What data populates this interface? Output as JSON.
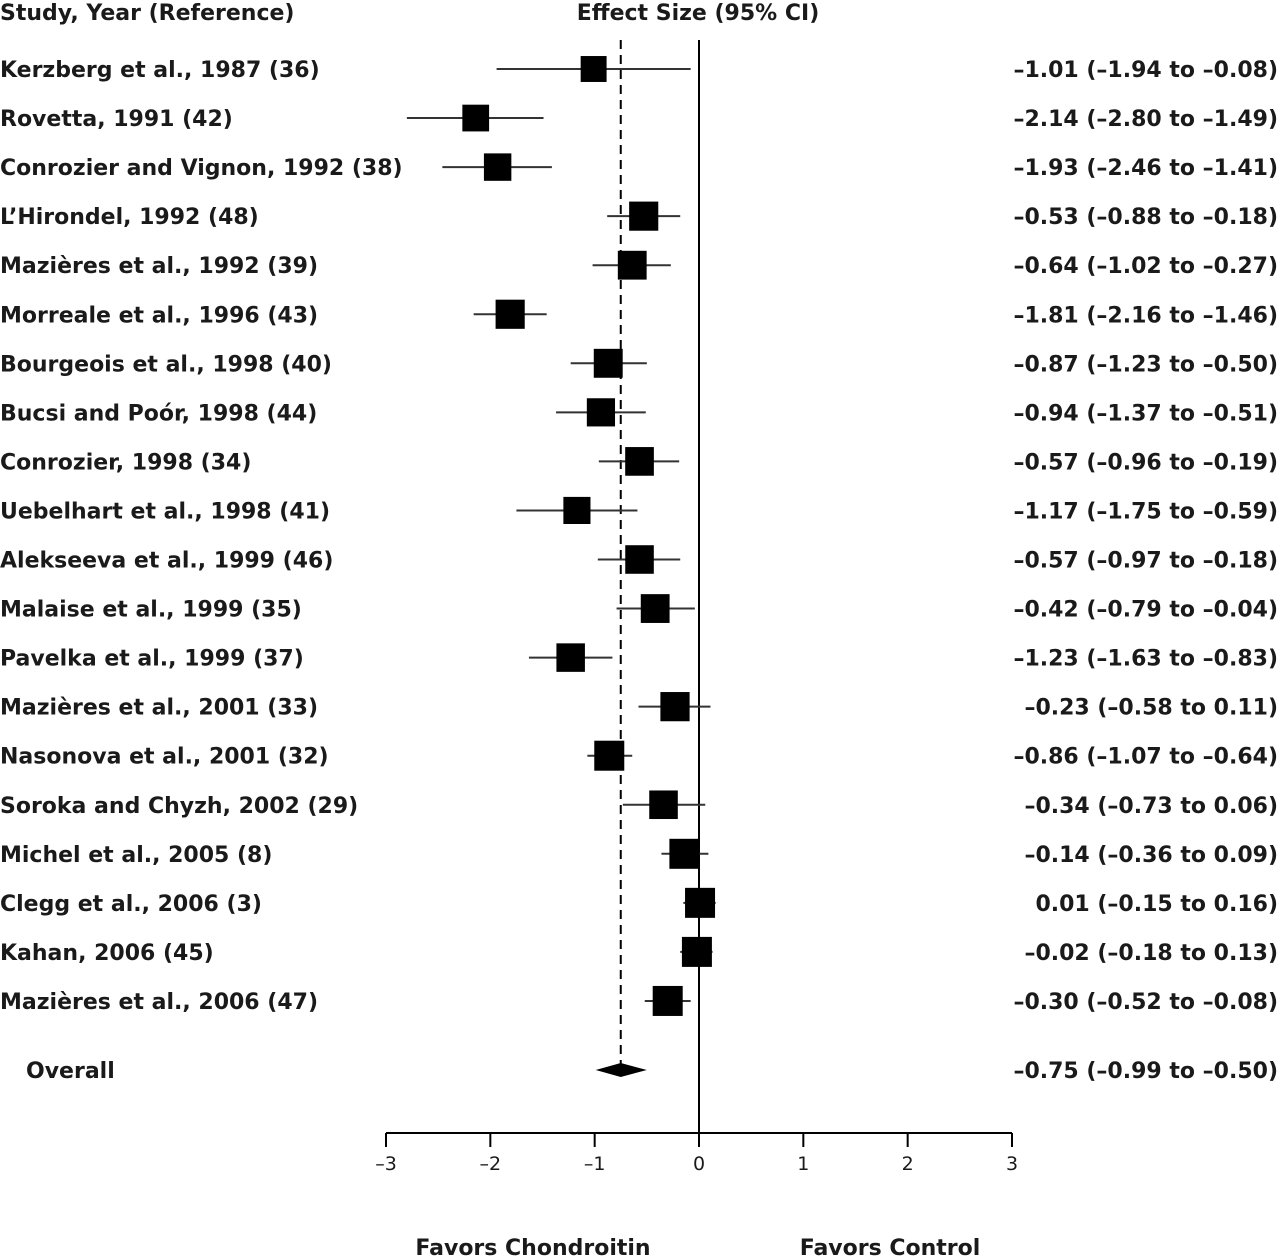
{
  "chart_data": {
    "type": "forest",
    "headers": {
      "study": "Study, Year (Reference)",
      "effect": "Effect Size (95% CI)"
    },
    "studies": [
      {
        "label": "Kerzberg et al., 1987 (36)",
        "est": -1.01,
        "lo": -1.94,
        "hi": -0.08,
        "ci_text": "–1.01 (–1.94 to –0.08)"
      },
      {
        "label": "Rovetta, 1991 (42)",
        "est": -2.14,
        "lo": -2.8,
        "hi": -1.49,
        "ci_text": "–2.14 (–2.80 to –1.49)"
      },
      {
        "label": "Conrozier and Vignon, 1992 (38)",
        "est": -1.93,
        "lo": -2.46,
        "hi": -1.41,
        "ci_text": "–1.93 (–2.46 to –1.41)"
      },
      {
        "label": "L’Hirondel, 1992 (48)",
        "est": -0.53,
        "lo": -0.88,
        "hi": -0.18,
        "ci_text": "–0.53 (–0.88 to –0.18)"
      },
      {
        "label": "Mazières et al., 1992 (39)",
        "est": -0.64,
        "lo": -1.02,
        "hi": -0.27,
        "ci_text": "–0.64 (–1.02 to –0.27)"
      },
      {
        "label": "Morreale et al., 1996 (43)",
        "est": -1.81,
        "lo": -2.16,
        "hi": -1.46,
        "ci_text": "–1.81 (–2.16 to –1.46)"
      },
      {
        "label": "Bourgeois et al., 1998 (40)",
        "est": -0.87,
        "lo": -1.23,
        "hi": -0.5,
        "ci_text": "–0.87 (–1.23 to –0.50)"
      },
      {
        "label": "Bucsi and Poór, 1998 (44)",
        "est": -0.94,
        "lo": -1.37,
        "hi": -0.51,
        "ci_text": "–0.94 (–1.37 to –0.51)"
      },
      {
        "label": "Conrozier, 1998 (34)",
        "est": -0.57,
        "lo": -0.96,
        "hi": -0.19,
        "ci_text": "–0.57 (–0.96 to –0.19)"
      },
      {
        "label": "Uebelhart et al., 1998 (41)",
        "est": -1.17,
        "lo": -1.75,
        "hi": -0.59,
        "ci_text": "–1.17 (–1.75 to –0.59)"
      },
      {
        "label": "Alekseeva et al., 1999 (46)",
        "est": -0.57,
        "lo": -0.97,
        "hi": -0.18,
        "ci_text": "–0.57 (–0.97 to –0.18)"
      },
      {
        "label": "Malaise et al., 1999  (35)",
        "est": -0.42,
        "lo": -0.79,
        "hi": -0.04,
        "ci_text": "–0.42 (–0.79 to –0.04)"
      },
      {
        "label": "Pavelka et al., 1999  (37)",
        "est": -1.23,
        "lo": -1.63,
        "hi": -0.83,
        "ci_text": "–1.23 (–1.63 to –0.83)"
      },
      {
        "label": "Mazières et al., 2001 (33)",
        "est": -0.23,
        "lo": -0.58,
        "hi": 0.11,
        "ci_text": "–0.23 (–0.58 to 0.11)"
      },
      {
        "label": "Nasonova et al., 2001 (32)",
        "est": -0.86,
        "lo": -1.07,
        "hi": -0.64,
        "ci_text": "–0.86 (–1.07 to –0.64)"
      },
      {
        "label": "Soroka and Chyzh, 2002 (29)",
        "est": -0.34,
        "lo": -0.73,
        "hi": 0.06,
        "ci_text": "–0.34 (–0.73 to 0.06)"
      },
      {
        "label": "Michel et al., 2005 (8)",
        "est": -0.14,
        "lo": -0.36,
        "hi": 0.09,
        "ci_text": "–0.14 (–0.36 to 0.09)"
      },
      {
        "label": "Clegg et al., 2006 (3)",
        "est": 0.01,
        "lo": -0.15,
        "hi": 0.16,
        "ci_text": "0.01 (–0.15 to 0.16)"
      },
      {
        "label": "Kahan, 2006 (45)",
        "est": -0.02,
        "lo": -0.18,
        "hi": 0.13,
        "ci_text": "–0.02 (–0.18 to 0.13)"
      },
      {
        "label": "Mazières et al., 2006 (47)",
        "est": -0.3,
        "lo": -0.52,
        "hi": -0.08,
        "ci_text": "–0.30 (–0.52 to –0.08)"
      }
    ],
    "overall": {
      "label": "Overall",
      "est": -0.75,
      "lo": -0.99,
      "hi": -0.5,
      "ci_text": "–0.75 (–0.99 to –0.50)"
    },
    "xlim": [
      -3,
      3
    ],
    "x_ticks": [
      -3,
      -2,
      -1,
      0,
      1,
      2,
      3
    ],
    "x_tick_labels": [
      "–3",
      "–2",
      "–1",
      "0",
      "1",
      "2",
      "3"
    ],
    "reference_line": 0,
    "pooled_line": -0.75,
    "favors_left": "Favors Chondroitin",
    "favors_right": "Favors Control",
    "grid": false,
    "colors": {
      "marker": "#000000",
      "text": "#1a1a1a",
      "ci_line": "#333333"
    }
  }
}
